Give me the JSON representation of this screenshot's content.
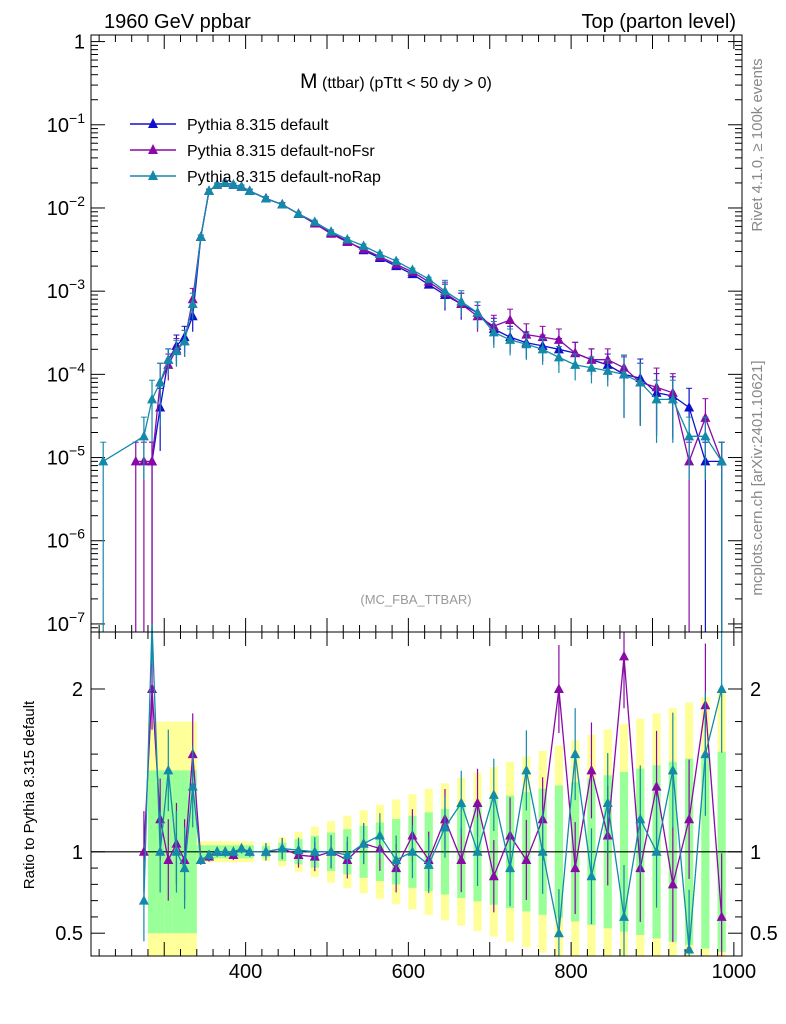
{
  "header": {
    "left_label": "1960 GeV ppbar",
    "right_label": "Top (parton level)"
  },
  "side_labels": {
    "rivet": "Rivet 4.1.0, ≥ 100k events",
    "mcplots": "mcplots.cern.ch [arXiv:2401.10621]"
  },
  "colors": {
    "default": "#1010cc",
    "noFsr": "#8a0aa8",
    "noRap": "#138aaa",
    "band_yellow": "#ffff99",
    "band_green": "#99ff99"
  },
  "chart_data": [
    {
      "type": "line",
      "scale": "log",
      "title": "M",
      "title_sub": "(ttbar) (pTtt < 50 dy > 0)",
      "watermark": "(MC_FBA_TTBAR)",
      "xlim": [
        210,
        1010
      ],
      "ylim": [
        8e-08,
        1.2
      ],
      "ytick_labels": [
        "1",
        "10^-1",
        "10^-2",
        "10^-3",
        "10^-4",
        "10^-5",
        "10^-6",
        "10^-7"
      ],
      "legend": [
        "Pythia 8.315 default",
        "Pythia 8.315 default-noFsr",
        "Pythia 8.315 default-noRap"
      ],
      "series": [
        {
          "name": "Pythia 8.315 default",
          "x": [
            285,
            295,
            305,
            315,
            325,
            335,
            345,
            355,
            365,
            375,
            385,
            395,
            405,
            425,
            445,
            465,
            485,
            505,
            525,
            545,
            565,
            585,
            605,
            625,
            645,
            665,
            685,
            705,
            725,
            745,
            765,
            785,
            805,
            825,
            845,
            865,
            885,
            905,
            925,
            945,
            965,
            985
          ],
          "values": [
            9e-06,
            4e-05,
            0.00015,
            0.00022,
            0.00028,
            0.0005,
            0.0045,
            0.016,
            0.019,
            0.02,
            0.019,
            0.018,
            0.016,
            0.013,
            0.011,
            0.0085,
            0.0065,
            0.005,
            0.004,
            0.0031,
            0.0025,
            0.002,
            0.0016,
            0.0012,
            0.0009,
            0.0007,
            0.00055,
            0.00035,
            0.00028,
            0.00024,
            0.00022,
            0.0002,
            0.00018,
            0.00015,
            0.00013,
            0.0001,
            9e-05,
            6e-05,
            5.5e-05,
            4e-05,
            9e-06,
            9e-06
          ]
        },
        {
          "name": "Pythia 8.315 default-noFsr",
          "x": [
            265,
            275,
            285,
            295,
            305,
            315,
            325,
            335,
            345,
            355,
            365,
            375,
            385,
            395,
            405,
            425,
            445,
            465,
            485,
            505,
            525,
            545,
            565,
            585,
            605,
            625,
            645,
            665,
            685,
            705,
            725,
            745,
            765,
            785,
            805,
            825,
            845,
            865,
            885,
            905,
            925,
            945,
            965,
            985
          ],
          "values": [
            9e-06,
            9e-06,
            9e-06,
            8e-05,
            0.00013,
            0.0002,
            0.00025,
            0.0008,
            0.0045,
            0.016,
            0.019,
            0.02,
            0.019,
            0.018,
            0.016,
            0.013,
            0.011,
            0.0085,
            0.0065,
            0.0049,
            0.0039,
            0.0032,
            0.0026,
            0.0021,
            0.0017,
            0.0013,
            0.00095,
            0.0007,
            0.0005,
            0.00038,
            0.00045,
            0.0003,
            0.00028,
            0.00026,
            0.00018,
            0.00015,
            0.00015,
            0.00012,
            8e-05,
            7e-05,
            6e-05,
            9e-06,
            3e-05,
            9e-06
          ]
        },
        {
          "name": "Pythia 8.315 default-noRap",
          "x": [
            225,
            275,
            285,
            295,
            305,
            315,
            325,
            335,
            345,
            355,
            365,
            375,
            385,
            395,
            405,
            425,
            445,
            465,
            485,
            505,
            525,
            545,
            565,
            585,
            605,
            625,
            645,
            665,
            685,
            705,
            725,
            745,
            765,
            785,
            805,
            825,
            845,
            865,
            885,
            905,
            925,
            945,
            965,
            985
          ],
          "values": [
            9e-06,
            1.8e-05,
            5e-05,
            8e-05,
            0.00015,
            0.00019,
            0.00025,
            0.0007,
            0.0045,
            0.016,
            0.019,
            0.02,
            0.019,
            0.018,
            0.016,
            0.013,
            0.011,
            0.0085,
            0.0068,
            0.0052,
            0.0042,
            0.0035,
            0.0028,
            0.0023,
            0.0018,
            0.0014,
            0.001,
            0.00075,
            0.00055,
            0.00032,
            0.00026,
            0.00023,
            0.0002,
            0.00016,
            0.00013,
            0.00012,
            0.00011,
            0.0001,
            8e-05,
            5e-05,
            5e-05,
            1.8e-05,
            1.8e-05,
            9e-06
          ]
        }
      ]
    },
    {
      "type": "line",
      "ylabel": "Ratio to Pythia 8.315 default",
      "xlim": [
        210,
        1010
      ],
      "ylim": [
        0.36,
        2.35
      ],
      "xtick_labels": [
        "400",
        "600",
        "800",
        "1000"
      ],
      "ytick_labels": [
        "0.5",
        "1",
        "2"
      ],
      "reference": 1,
      "series": [
        {
          "name": "Pythia 8.315 default-noFsr",
          "x": [
            275,
            285,
            295,
            305,
            315,
            325,
            335,
            345,
            355,
            365,
            375,
            385,
            395,
            405,
            425,
            445,
            465,
            485,
            505,
            525,
            545,
            565,
            585,
            605,
            625,
            645,
            665,
            685,
            705,
            725,
            745,
            765,
            785,
            805,
            825,
            845,
            865,
            885,
            905,
            925,
            945,
            965,
            985
          ],
          "values": [
            1.0,
            2.0,
            1.2,
            0.95,
            1.05,
            0.95,
            1.6,
            0.95,
            0.97,
            1.0,
            1.0,
            0.98,
            1.02,
            1.0,
            1.0,
            1.02,
            0.98,
            0.97,
            1.0,
            0.95,
            1.05,
            1.02,
            0.9,
            1.1,
            0.95,
            1.2,
            0.95,
            1.3,
            0.85,
            1.1,
            0.95,
            1.2,
            2.0,
            0.9,
            1.5,
            1.1,
            2.2,
            0.9,
            1.4,
            0.8,
            1.2,
            1.9,
            0.6
          ]
        },
        {
          "name": "Pythia 8.315 default-noRap",
          "x": [
            275,
            285,
            295,
            305,
            315,
            325,
            335,
            345,
            355,
            365,
            375,
            385,
            395,
            405,
            425,
            445,
            465,
            485,
            505,
            525,
            545,
            565,
            585,
            605,
            625,
            645,
            665,
            685,
            705,
            725,
            745,
            765,
            785,
            805,
            825,
            845,
            865,
            885,
            905,
            925,
            945,
            965,
            985
          ],
          "values": [
            0.7,
            2.4,
            1.0,
            1.5,
            1.0,
            0.9,
            1.4,
            0.95,
            0.98,
            1.0,
            1.0,
            1.0,
            1.02,
            1.0,
            1.0,
            1.02,
            1.01,
            1.0,
            1.0,
            0.98,
            1.05,
            1.1,
            0.95,
            1.0,
            0.92,
            1.15,
            1.3,
            1.0,
            1.35,
            0.9,
            1.5,
            1.0,
            0.5,
            1.6,
            0.85,
            1.3,
            0.6,
            1.2,
            1.0,
            1.5,
            0.4,
            1.6,
            2.0
          ]
        }
      ]
    }
  ]
}
